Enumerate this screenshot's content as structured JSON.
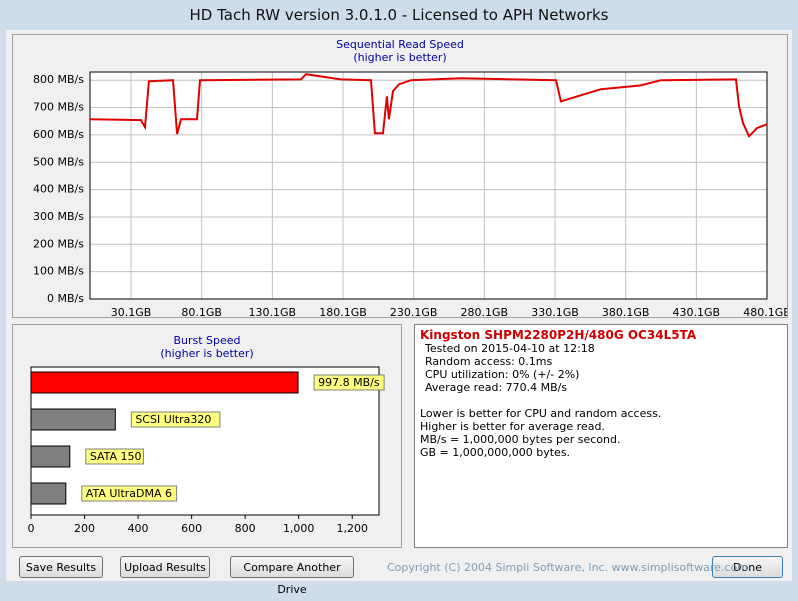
{
  "window_title": "HD Tach RW version 3.0.1.0 - Licensed to APH Networks",
  "read_chart": {
    "type": "line",
    "title": "Sequential Read Speed",
    "subtitle": "(higher is better)",
    "color": "#e00000",
    "x": [
      1.1,
      37.2,
      40.0,
      42.8,
      59.8,
      62.7,
      65.5,
      76.8,
      78.9,
      150.4,
      153.9,
      178.7,
      199.9,
      202.7,
      208.4,
      211.2,
      212.6,
      215.5,
      219.7,
      228.2,
      263.6,
      330.8,
      334.3,
      362.6,
      390.9,
      405.1,
      458.2,
      460.3,
      463.1,
      467.4,
      473.0,
      480.1
    ],
    "values": [
      657,
      654,
      628,
      796,
      800,
      603,
      657,
      657,
      800,
      803,
      822,
      803,
      800,
      606,
      606,
      741,
      657,
      760,
      785,
      800,
      807,
      800,
      723,
      767,
      781,
      800,
      803,
      705,
      643,
      595,
      625,
      639
    ],
    "xlim": [
      1.1,
      480.1
    ],
    "xticks": [
      {
        "value": 30.1,
        "label": "30.1GB"
      },
      {
        "value": 80.1,
        "label": "80.1GB"
      },
      {
        "value": 130.1,
        "label": "130.1GB"
      },
      {
        "value": 180.1,
        "label": "180.1GB"
      },
      {
        "value": 230.1,
        "label": "230.1GB"
      },
      {
        "value": 280.1,
        "label": "280.1GB"
      },
      {
        "value": 330.1,
        "label": "330.1GB"
      },
      {
        "value": 380.1,
        "label": "380.1GB"
      },
      {
        "value": 430.1,
        "label": "430.1GB"
      },
      {
        "value": 480.1,
        "label": "480.1GB"
      }
    ],
    "ylim": [
      0,
      830
    ],
    "yticks": [
      {
        "value": 0,
        "label": "0 MB/s"
      },
      {
        "value": 100,
        "label": "100 MB/s"
      },
      {
        "value": 200,
        "label": "200 MB/s"
      },
      {
        "value": 300,
        "label": "300 MB/s"
      },
      {
        "value": 400,
        "label": "400 MB/s"
      },
      {
        "value": 500,
        "label": "500 MB/s"
      },
      {
        "value": 600,
        "label": "600 MB/s"
      },
      {
        "value": 700,
        "label": "700 MB/s"
      },
      {
        "value": 800,
        "label": "800 MB/s"
      }
    ],
    "grid": true
  },
  "burst_chart": {
    "type": "hbar",
    "title": "Burst Speed",
    "subtitle": "(higher is better)",
    "categories": [
      "997.8 MB/s",
      "SCSI Ultra320",
      "SATA 150",
      "ATA UltraDMA 6"
    ],
    "values": [
      997.8,
      315,
      145,
      130
    ],
    "colors": [
      "#ff0000",
      "#808080",
      "#808080",
      "#808080"
    ],
    "xlim": [
      0,
      1300
    ],
    "xticks": [
      0,
      200,
      400,
      600,
      800,
      {
        "value": 1000,
        "label": "1,000"
      },
      {
        "value": 1200,
        "label": "1,200"
      }
    ]
  },
  "info": {
    "drive": "Kingston SHPM2280P2H/480G OC34L5TA",
    "lines": [
      "Tested on 2015-04-10 at 12:18",
      "Random access: 0.1ms",
      "CPU utilization: 0% (+/- 2%)",
      "Average read: 770.4 MB/s"
    ],
    "notes": [
      "Lower is better for CPU and random access.",
      "Higher is better for average read.",
      "MB/s = 1,000,000 bytes per second.",
      "GB = 1,000,000,000 bytes."
    ]
  },
  "buttons": [
    "Save Results",
    "Upload Results",
    "Compare Another Drive",
    "Done"
  ],
  "copyright": "Copyright (C) 2004 Simpli Software, Inc. www.simplisoftware.com"
}
